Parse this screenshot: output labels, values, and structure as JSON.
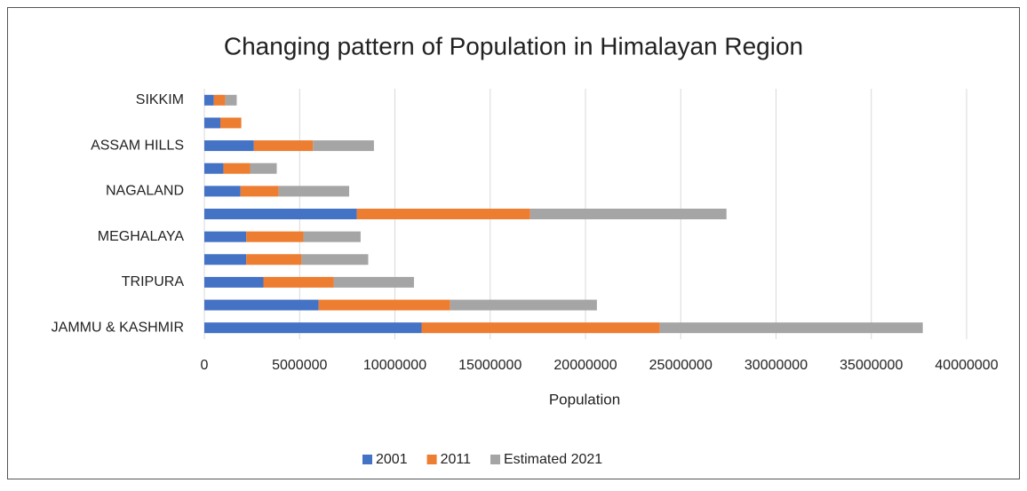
{
  "chart_data": {
    "type": "stacked_barh",
    "title": "Changing pattern of Population in Himalayan Region",
    "x_label": "Population",
    "categories": [
      "JAMMU & KASHMIR",
      null,
      "TRIPURA",
      null,
      "MEGHALAYA",
      null,
      "NAGALAND",
      null,
      "ASSAM HILLS",
      null,
      "SIKKIM"
    ],
    "series": [
      {
        "name": "2001",
        "color": "#4472c4",
        "values": [
          11400000,
          6000000,
          3100000,
          2200000,
          2200000,
          8000000,
          1900000,
          1000000,
          2600000,
          840000,
          500000
        ]
      },
      {
        "name": "2011",
        "color": "#ed7d31",
        "values": [
          12500000,
          6900000,
          3700000,
          2900000,
          3000000,
          9100000,
          2000000,
          1400000,
          3100000,
          1100000,
          600000
        ]
      },
      {
        "name": "Estimated 2021",
        "color": "#a5a5a5",
        "values": [
          13800000,
          7700000,
          4200000,
          3500000,
          3000000,
          10300000,
          3700000,
          1400000,
          3200000,
          null,
          600000
        ]
      }
    ],
    "xlim": [
      0,
      40000000
    ],
    "xticks": [
      0,
      5000000,
      10000000,
      15000000,
      20000000,
      25000000,
      30000000,
      35000000,
      40000000
    ],
    "grid": true,
    "legend": "bottom"
  }
}
